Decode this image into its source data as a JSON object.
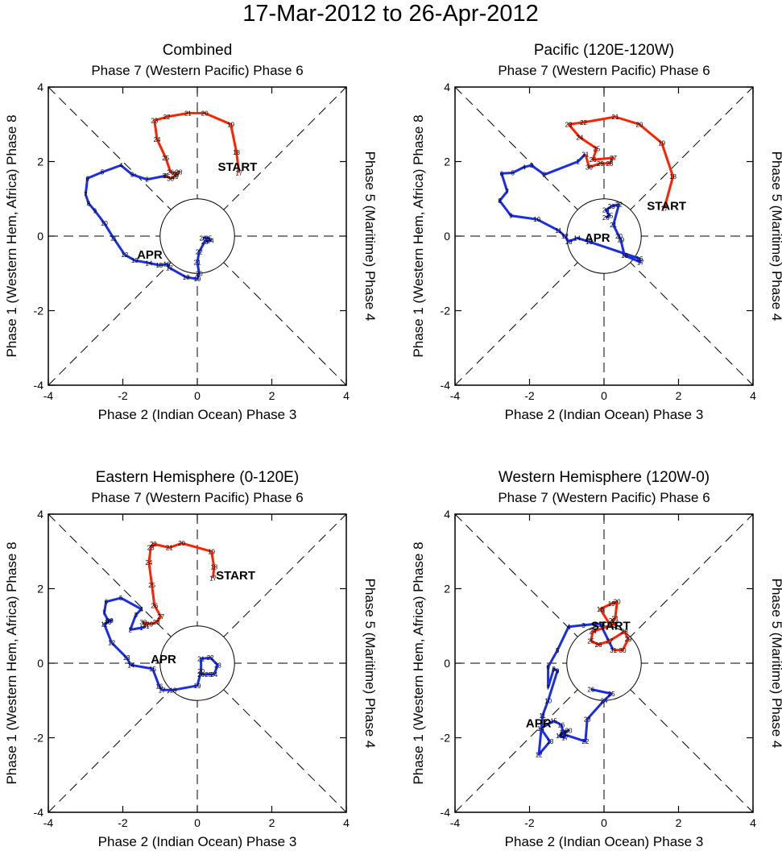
{
  "figure_title": "17-Mar-2012 to 26-Apr-2012",
  "colors": {
    "march": "#ff2200",
    "april": "#1a2ee6",
    "axes": "#000000"
  },
  "chart_data": [
    {
      "type": "line",
      "title": "Combined",
      "top_label": "Phase 7 (Western Pacific) Phase 6",
      "bottom_label": "Phase 2 (Indian Ocean) Phase 3",
      "left_label": "Phase 1 (Western Hem, Africa) Phase 8",
      "right_label": "Phase 5 (Maritime) Phase 4",
      "xlim": [
        -4,
        4
      ],
      "ylim": [
        -4,
        4
      ],
      "xticks": [
        "-4",
        "-2",
        "0",
        "2",
        "4"
      ],
      "yticks": [
        "-4",
        "-2",
        "0",
        "2",
        "4"
      ],
      "start_label": "START",
      "start_pos": [
        0.55,
        1.75
      ],
      "month2_label": "APR",
      "month2_pos": [
        -1.62,
        -0.6
      ],
      "march": [
        {
          "d": "17",
          "x": 1.12,
          "y": 1.7
        },
        {
          "d": "18",
          "x": 1.05,
          "y": 2.25
        },
        {
          "d": "19",
          "x": 0.9,
          "y": 3.0
        },
        {
          "d": "20",
          "x": 0.2,
          "y": 3.3
        },
        {
          "d": "21",
          "x": -0.25,
          "y": 3.3
        },
        {
          "d": "22",
          "x": -0.82,
          "y": 3.2
        },
        {
          "d": "23",
          "x": -1.15,
          "y": 3.1
        },
        {
          "d": "24",
          "x": -1.08,
          "y": 2.6
        },
        {
          "d": "25",
          "x": -0.85,
          "y": 2.1
        },
        {
          "d": "26",
          "x": -0.72,
          "y": 1.72
        },
        {
          "d": "27",
          "x": -0.55,
          "y": 1.68
        },
        {
          "d": "28",
          "x": -0.5,
          "y": 1.72
        },
        {
          "d": "29",
          "x": -0.6,
          "y": 1.6
        },
        {
          "d": "30",
          "x": -0.72,
          "y": 1.55
        },
        {
          "d": "31",
          "x": -0.85,
          "y": 1.62
        }
      ],
      "april": [
        {
          "d": "1",
          "x": -0.85,
          "y": 1.62
        },
        {
          "d": "2",
          "x": -1.35,
          "y": 1.52
        },
        {
          "d": "3",
          "x": -1.75,
          "y": 1.65
        },
        {
          "d": "4",
          "x": -2.05,
          "y": 1.9
        },
        {
          "d": "5",
          "x": -2.55,
          "y": 1.72
        },
        {
          "d": "6",
          "x": -2.95,
          "y": 1.55
        },
        {
          "d": "7",
          "x": -3.0,
          "y": 1.12
        },
        {
          "d": "8",
          "x": -2.92,
          "y": 0.88
        },
        {
          "d": "9",
          "x": -2.75,
          "y": 0.68
        },
        {
          "d": "10",
          "x": -2.5,
          "y": 0.35
        },
        {
          "d": "11",
          "x": -2.25,
          "y": -0.05
        },
        {
          "d": "12",
          "x": -1.95,
          "y": -0.5
        },
        {
          "d": "13",
          "x": -1.68,
          "y": -0.65
        },
        {
          "d": "14",
          "x": -1.3,
          "y": -0.72
        },
        {
          "d": "15",
          "x": -1.02,
          "y": -0.78
        },
        {
          "d": "16",
          "x": -0.82,
          "y": -0.75
        },
        {
          "d": "17",
          "x": -0.75,
          "y": -0.85
        },
        {
          "d": "18",
          "x": -0.3,
          "y": -1.1
        },
        {
          "d": "19",
          "x": 0.0,
          "y": -1.15
        },
        {
          "d": "20",
          "x": 0.05,
          "y": -1.0
        },
        {
          "d": "21",
          "x": 0.0,
          "y": -0.7
        },
        {
          "d": "22",
          "x": 0.05,
          "y": -0.42
        },
        {
          "d": "23",
          "x": 0.2,
          "y": -0.15
        },
        {
          "d": "24",
          "x": 0.35,
          "y": -0.12
        },
        {
          "d": "25",
          "x": 0.3,
          "y": -0.05
        },
        {
          "d": "26",
          "x": 0.15,
          "y": -0.05
        }
      ]
    },
    {
      "type": "line",
      "title": "Pacific (120E-120W)",
      "top_label": "Phase 7 (Western Pacific) Phase 6",
      "bottom_label": "Phase 2 (Indian Ocean) Phase 3",
      "left_label": "Phase 1 (Western Hem, Africa) Phase 8",
      "right_label": "Phase 5 (Maritime) Phase 4",
      "xlim": [
        -4,
        4
      ],
      "ylim": [
        -4,
        4
      ],
      "xticks": [
        "-4",
        "-2",
        "0",
        "2",
        "4"
      ],
      "yticks": [
        "-4",
        "-2",
        "0",
        "2",
        "4"
      ],
      "start_label": "START",
      "start_pos": [
        1.15,
        0.7
      ],
      "month2_label": "APR",
      "month2_pos": [
        -0.52,
        -0.15
      ],
      "march": [
        {
          "d": "17",
          "x": 1.62,
          "y": 0.75
        },
        {
          "d": "18",
          "x": 1.85,
          "y": 1.6
        },
        {
          "d": "19",
          "x": 1.55,
          "y": 2.5
        },
        {
          "d": "20",
          "x": 0.95,
          "y": 3.0
        },
        {
          "d": "21",
          "x": 0.3,
          "y": 3.2
        },
        {
          "d": "22",
          "x": -0.55,
          "y": 3.05
        },
        {
          "d": "23",
          "x": -0.95,
          "y": 3.0
        },
        {
          "d": "24",
          "x": -0.65,
          "y": 2.65
        },
        {
          "d": "25",
          "x": -0.2,
          "y": 2.35
        },
        {
          "d": "26",
          "x": -0.3,
          "y": 2.05
        },
        {
          "d": "27",
          "x": 0.25,
          "y": 2.1
        },
        {
          "d": "28",
          "x": 0.15,
          "y": 1.95
        },
        {
          "d": "29",
          "x": -0.1,
          "y": 1.95
        },
        {
          "d": "30",
          "x": -0.4,
          "y": 1.85
        },
        {
          "d": "31",
          "x": -0.5,
          "y": 2.2
        }
      ],
      "april": [
        {
          "d": "1",
          "x": -0.7,
          "y": 2.0
        },
        {
          "d": "2",
          "x": -1.6,
          "y": 1.65
        },
        {
          "d": "3",
          "x": -1.95,
          "y": 1.9
        },
        {
          "d": "4",
          "x": -2.15,
          "y": 1.85
        },
        {
          "d": "5",
          "x": -2.45,
          "y": 1.7
        },
        {
          "d": "6",
          "x": -2.75,
          "y": 1.68
        },
        {
          "d": "7",
          "x": -2.6,
          "y": 1.2
        },
        {
          "d": "8",
          "x": -2.8,
          "y": 0.95
        },
        {
          "d": "9",
          "x": -2.5,
          "y": 0.55
        },
        {
          "d": "10",
          "x": -1.8,
          "y": 0.45
        },
        {
          "d": "11",
          "x": -1.22,
          "y": 0.15
        },
        {
          "d": "12",
          "x": -1.05,
          "y": 0.0
        },
        {
          "d": "13",
          "x": -0.95,
          "y": -0.15
        },
        {
          "d": "14",
          "x": -0.72,
          "y": -0.05
        },
        {
          "d": "15",
          "x": -0.4,
          "y": -0.15
        },
        {
          "d": "16",
          "x": 0.95,
          "y": -0.6
        },
        {
          "d": "17",
          "x": 0.98,
          "y": -0.7
        },
        {
          "d": "18",
          "x": 0.55,
          "y": -0.52
        },
        {
          "d": "19",
          "x": 0.45,
          "y": -0.1
        },
        {
          "d": "20",
          "x": 0.4,
          "y": 0.0
        },
        {
          "d": "21",
          "x": 0.25,
          "y": 0.3
        },
        {
          "d": "22",
          "x": 0.4,
          "y": 0.85
        },
        {
          "d": "23",
          "x": 0.2,
          "y": 0.8
        },
        {
          "d": "24",
          "x": 0.05,
          "y": 0.7
        },
        {
          "d": "25",
          "x": 0.15,
          "y": 0.55
        },
        {
          "d": "26",
          "x": 0.05,
          "y": 0.5
        }
      ]
    },
    {
      "type": "line",
      "title": "Eastern Hemisphere (0-120E)",
      "top_label": "Phase 7 (Western Pacific) Phase 6",
      "bottom_label": "Phase 2 (Indian Ocean) Phase 3",
      "left_label": "Phase 1 (Western Hem, Africa) Phase 8",
      "right_label": "Phase 5 (Maritime) Phase 4",
      "xlim": [
        -4,
        4
      ],
      "ylim": [
        -4,
        4
      ],
      "xticks": [
        "-4",
        "-2",
        "0",
        "2",
        "4"
      ],
      "yticks": [
        "-4",
        "-2",
        "0",
        "2",
        "4"
      ],
      "start_label": "START",
      "start_pos": [
        0.5,
        2.25
      ],
      "month2_label": "APR",
      "month2_pos": [
        -1.25,
        0.0
      ],
      "march": [
        {
          "d": "17",
          "x": 0.42,
          "y": 2.28
        },
        {
          "d": "18",
          "x": 0.45,
          "y": 2.58
        },
        {
          "d": "19",
          "x": 0.38,
          "y": 3.0
        },
        {
          "d": "20",
          "x": -0.42,
          "y": 3.22
        },
        {
          "d": "21",
          "x": -0.75,
          "y": 3.1
        },
        {
          "d": "22",
          "x": -1.18,
          "y": 3.2
        },
        {
          "d": "23",
          "x": -1.25,
          "y": 3.1
        },
        {
          "d": "24",
          "x": -1.3,
          "y": 2.7
        },
        {
          "d": "25",
          "x": -1.22,
          "y": 2.1
        },
        {
          "d": "26",
          "x": -1.15,
          "y": 1.55
        },
        {
          "d": "27",
          "x": -0.98,
          "y": 1.25
        },
        {
          "d": "28",
          "x": -1.1,
          "y": 1.1
        },
        {
          "d": "29",
          "x": -1.28,
          "y": 1.05
        },
        {
          "d": "30",
          "x": -1.45,
          "y": 1.1
        },
        {
          "d": "31",
          "x": -1.38,
          "y": 1.0
        }
      ],
      "april": [
        {
          "d": "1",
          "x": -1.5,
          "y": 0.95
        },
        {
          "d": "2",
          "x": -1.8,
          "y": 0.9
        },
        {
          "d": "3",
          "x": -1.65,
          "y": 1.3
        },
        {
          "d": "4",
          "x": -1.5,
          "y": 1.45
        },
        {
          "d": "5",
          "x": -2.05,
          "y": 1.75
        },
        {
          "d": "6",
          "x": -2.45,
          "y": 1.65
        },
        {
          "d": "7",
          "x": -2.5,
          "y": 1.35
        },
        {
          "d": "8",
          "x": -2.4,
          "y": 1.15
        },
        {
          "d": "9",
          "x": -2.3,
          "y": 1.15
        },
        {
          "d": "10",
          "x": -2.4,
          "y": 1.1
        },
        {
          "d": "11",
          "x": -2.5,
          "y": 1.05
        },
        {
          "d": "12",
          "x": -2.3,
          "y": 0.55
        },
        {
          "d": "13",
          "x": -1.9,
          "y": 0.15
        },
        {
          "d": "14",
          "x": -1.78,
          "y": -0.05
        },
        {
          "d": "15",
          "x": -1.2,
          "y": -0.15
        },
        {
          "d": "16",
          "x": -1.02,
          "y": -0.62
        },
        {
          "d": "17",
          "x": -0.95,
          "y": -0.72
        },
        {
          "d": "18",
          "x": -0.65,
          "y": -0.72
        },
        {
          "d": "19",
          "x": 0.0,
          "y": -0.6
        },
        {
          "d": "20",
          "x": 0.1,
          "y": -0.22
        },
        {
          "d": "21",
          "x": 0.1,
          "y": 0.12
        },
        {
          "d": "22",
          "x": 0.35,
          "y": 0.15
        },
        {
          "d": "23",
          "x": 0.55,
          "y": -0.05
        },
        {
          "d": "24",
          "x": 0.45,
          "y": -0.3
        },
        {
          "d": "25",
          "x": 0.3,
          "y": -0.3
        },
        {
          "d": "26",
          "x": 0.1,
          "y": -0.3
        }
      ]
    },
    {
      "type": "line",
      "title": "Western Hemisphere (120W-0)",
      "top_label": "Phase 7 (Western Pacific) Phase 6",
      "bottom_label": "Phase 2 (Indian Ocean) Phase 3",
      "left_label": "Phase 1 (Western Hem, Africa) Phase 8",
      "right_label": "Phase 5 (Maritime) Phase 4",
      "xlim": [
        -4,
        4
      ],
      "ylim": [
        -4,
        4
      ],
      "xticks": [
        "-4",
        "-2",
        "0",
        "2",
        "4"
      ],
      "yticks": [
        "-4",
        "-2",
        "0",
        "2",
        "4"
      ],
      "start_label": "START",
      "start_pos": [
        -0.35,
        0.9
      ],
      "month2_label": "APR",
      "month2_pos": [
        -2.1,
        -1.72
      ],
      "march": [
        {
          "d": "17",
          "x": 0.15,
          "y": 1.05
        },
        {
          "d": "18",
          "x": -0.1,
          "y": 1.45
        },
        {
          "d": "19",
          "x": 0.2,
          "y": 1.6
        },
        {
          "d": "20",
          "x": 0.35,
          "y": 1.65
        },
        {
          "d": "21",
          "x": 0.3,
          "y": 1.2
        },
        {
          "d": "22",
          "x": 0.22,
          "y": 1.15
        },
        {
          "d": "23",
          "x": 0.28,
          "y": 1.05
        },
        {
          "d": "24",
          "x": -0.3,
          "y": 0.85
        },
        {
          "d": "25",
          "x": -0.35,
          "y": 0.6
        },
        {
          "d": "26",
          "x": -0.15,
          "y": 0.5
        },
        {
          "d": "27",
          "x": 0.15,
          "y": 0.6
        },
        {
          "d": "28",
          "x": 0.55,
          "y": 0.85
        },
        {
          "d": "29",
          "x": 0.65,
          "y": 0.65
        },
        {
          "d": "30",
          "x": 0.5,
          "y": 0.35
        },
        {
          "d": "31",
          "x": 0.25,
          "y": 0.35
        }
      ],
      "april": [
        {
          "d": "1",
          "x": -0.1,
          "y": 1.05
        },
        {
          "d": "2",
          "x": -0.25,
          "y": 1.05
        },
        {
          "d": "3",
          "x": -0.55,
          "y": 1.02
        },
        {
          "d": "4",
          "x": -0.95,
          "y": 0.98
        },
        {
          "d": "5",
          "x": -1.25,
          "y": 0.35
        },
        {
          "d": "6",
          "x": -1.5,
          "y": -0.1
        },
        {
          "d": "7",
          "x": -1.5,
          "y": -0.65
        },
        {
          "d": "8",
          "x": -1.35,
          "y": -0.15
        },
        {
          "d": "9",
          "x": -1.25,
          "y": -0.2
        },
        {
          "d": "10",
          "x": -1.5,
          "y": -1.0
        },
        {
          "d": "11",
          "x": -1.65,
          "y": -1.4
        },
        {
          "d": "12",
          "x": -1.75,
          "y": -2.45
        },
        {
          "d": "13",
          "x": -1.45,
          "y": -2.1
        },
        {
          "d": "14",
          "x": -1.7,
          "y": -1.75
        },
        {
          "d": "15",
          "x": -1.35,
          "y": -1.55
        },
        {
          "d": "16",
          "x": -1.15,
          "y": -1.65
        },
        {
          "d": "17",
          "x": -1.05,
          "y": -2.0
        },
        {
          "d": "18",
          "x": -1.2,
          "y": -1.95
        },
        {
          "d": "19",
          "x": -1.1,
          "y": -1.85
        },
        {
          "d": "20",
          "x": -0.95,
          "y": -1.8
        },
        {
          "d": "21",
          "x": -1.1,
          "y": -1.9
        },
        {
          "d": "22",
          "x": -0.5,
          "y": -2.1
        },
        {
          "d": "23",
          "x": -0.45,
          "y": -1.5
        },
        {
          "d": "24",
          "x": 0.0,
          "y": -1.0
        },
        {
          "d": "25",
          "x": 0.2,
          "y": -0.82
        },
        {
          "d": "26",
          "x": -0.35,
          "y": -0.7
        }
      ]
    }
  ]
}
